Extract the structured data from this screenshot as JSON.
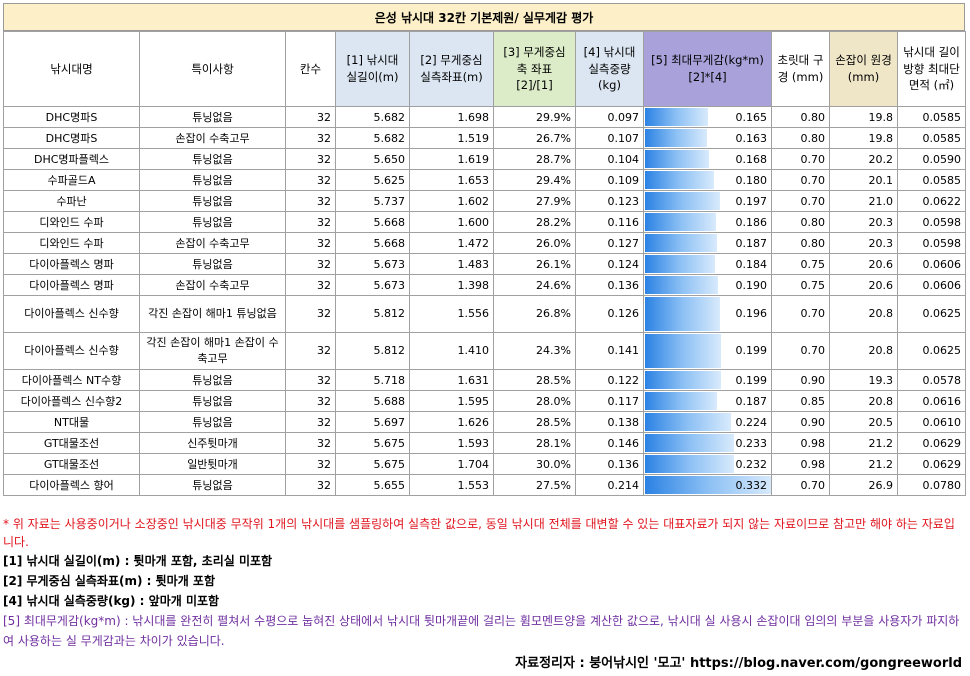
{
  "title": "은성 낚시대 32칸 기본제원/ 실무게감 평가",
  "headers": {
    "name": "낚시대명",
    "note": "특이사항",
    "kan": "칸수",
    "length": "[1] 낚시대 실길이(m)",
    "cg": "[2] 무게중심 실측좌표(m)",
    "cg_ratio": "[3] 무게중심 축 좌표 [2]/[1]",
    "weight": "[4] 낚시대 실측중량 (kg)",
    "moment": "[5] 최대무게감(kg*m) [2]*[4]",
    "tip": "초릿대 구경 (mm)",
    "butt": "손잡이 원경(mm)",
    "area": "낚시대 길이방향 최대단면적 (㎡)"
  },
  "rows": [
    {
      "name": "DHC명파S",
      "note": "튜닝없음",
      "kan": "32",
      "length": "5.682",
      "cg": "1.698",
      "ratio": "29.9%",
      "weight": "0.097",
      "moment": 0.165,
      "moment_text": "0.165",
      "tip": "0.80",
      "butt": "19.8",
      "area": "0.0585"
    },
    {
      "name": "DHC명파S",
      "note": "손잡이 수축고무",
      "kan": "32",
      "length": "5.682",
      "cg": "1.519",
      "ratio": "26.7%",
      "weight": "0.107",
      "moment": 0.163,
      "moment_text": "0.163",
      "tip": "0.80",
      "butt": "19.8",
      "area": "0.0585"
    },
    {
      "name": "DHC명파플렉스",
      "note": "튜닝없음",
      "kan": "32",
      "length": "5.650",
      "cg": "1.619",
      "ratio": "28.7%",
      "weight": "0.104",
      "moment": 0.168,
      "moment_text": "0.168",
      "tip": "0.70",
      "butt": "20.2",
      "area": "0.0590"
    },
    {
      "name": "수파골드A",
      "note": "튜닝없음",
      "kan": "32",
      "length": "5.625",
      "cg": "1.653",
      "ratio": "29.4%",
      "weight": "0.109",
      "moment": 0.18,
      "moment_text": "0.180",
      "tip": "0.70",
      "butt": "20.1",
      "area": "0.0585"
    },
    {
      "name": "수파난",
      "note": "튜닝없음",
      "kan": "32",
      "length": "5.737",
      "cg": "1.602",
      "ratio": "27.9%",
      "weight": "0.123",
      "moment": 0.197,
      "moment_text": "0.197",
      "tip": "0.70",
      "butt": "21.0",
      "area": "0.0622"
    },
    {
      "name": "디와인드 수파",
      "note": "튜닝없음",
      "kan": "32",
      "length": "5.668",
      "cg": "1.600",
      "ratio": "28.2%",
      "weight": "0.116",
      "moment": 0.186,
      "moment_text": "0.186",
      "tip": "0.80",
      "butt": "20.3",
      "area": "0.0598"
    },
    {
      "name": "디와인드 수파",
      "note": "손잡이 수축고무",
      "kan": "32",
      "length": "5.668",
      "cg": "1.472",
      "ratio": "26.0%",
      "weight": "0.127",
      "moment": 0.187,
      "moment_text": "0.187",
      "tip": "0.80",
      "butt": "20.3",
      "area": "0.0598"
    },
    {
      "name": "다이아플렉스 명파",
      "note": "튜닝없음",
      "kan": "32",
      "length": "5.673",
      "cg": "1.483",
      "ratio": "26.1%",
      "weight": "0.124",
      "moment": 0.184,
      "moment_text": "0.184",
      "tip": "0.75",
      "butt": "20.6",
      "area": "0.0606"
    },
    {
      "name": "다이아플렉스 명파",
      "note": "손잡이 수축고무",
      "kan": "32",
      "length": "5.673",
      "cg": "1.398",
      "ratio": "24.6%",
      "weight": "0.136",
      "moment": 0.19,
      "moment_text": "0.190",
      "tip": "0.75",
      "butt": "20.6",
      "area": "0.0606"
    },
    {
      "name": "다이아플렉스 신수향",
      "note": "각진 손잡이 해마1 튜닝없음",
      "kan": "32",
      "length": "5.812",
      "cg": "1.556",
      "ratio": "26.8%",
      "weight": "0.126",
      "moment": 0.196,
      "moment_text": "0.196",
      "tip": "0.70",
      "butt": "20.8",
      "area": "0.0625",
      "tall": true
    },
    {
      "name": "다이아플렉스 신수향",
      "note": "각진 손잡이 해마1 손잡이 수축고무",
      "kan": "32",
      "length": "5.812",
      "cg": "1.410",
      "ratio": "24.3%",
      "weight": "0.141",
      "moment": 0.199,
      "moment_text": "0.199",
      "tip": "0.70",
      "butt": "20.8",
      "area": "0.0625",
      "tall": true
    },
    {
      "name": "다이아플렉스 NT수향",
      "note": "튜닝없음",
      "kan": "32",
      "length": "5.718",
      "cg": "1.631",
      "ratio": "28.5%",
      "weight": "0.122",
      "moment": 0.199,
      "moment_text": "0.199",
      "tip": "0.90",
      "butt": "19.3",
      "area": "0.0578"
    },
    {
      "name": "다이아플렉스 신수향2",
      "note": "튜닝없음",
      "kan": "32",
      "length": "5.688",
      "cg": "1.595",
      "ratio": "28.0%",
      "weight": "0.117",
      "moment": 0.187,
      "moment_text": "0.187",
      "tip": "0.85",
      "butt": "20.8",
      "area": "0.0616"
    },
    {
      "name": "NT대물",
      "note": "튜닝없음",
      "kan": "32",
      "length": "5.697",
      "cg": "1.626",
      "ratio": "28.5%",
      "weight": "0.138",
      "moment": 0.224,
      "moment_text": "0.224",
      "tip": "0.90",
      "butt": "20.5",
      "area": "0.0610"
    },
    {
      "name": "GT대물조선",
      "note": "신주튓마개",
      "kan": "32",
      "length": "5.675",
      "cg": "1.593",
      "ratio": "28.1%",
      "weight": "0.146",
      "moment": 0.233,
      "moment_text": "0.233",
      "tip": "0.98",
      "butt": "21.2",
      "area": "0.0629"
    },
    {
      "name": "GT대물조선",
      "note": "일반튓마개",
      "kan": "32",
      "length": "5.675",
      "cg": "1.704",
      "ratio": "30.0%",
      "weight": "0.136",
      "moment": 0.232,
      "moment_text": "0.232",
      "tip": "0.98",
      "butt": "21.2",
      "area": "0.0629"
    },
    {
      "name": "다이아플렉스 향어",
      "note": "튜닝없음",
      "kan": "32",
      "length": "5.655",
      "cg": "1.553",
      "ratio": "27.5%",
      "weight": "0.214",
      "moment": 0.332,
      "moment_text": "0.332",
      "tip": "0.70",
      "butt": "26.9",
      "area": "0.0780"
    }
  ],
  "moment_bar_max": 0.332,
  "notes": {
    "disclaimer": "* 위 자료는 사용중이거나 소장중인 낚시대중 무작위 1개의 낚시대를 샘플링하여 실측한 값으로, 동일 낚시대 전체를 대변할 수 있는 대표자료가 되지 않는 자료이므로 참고만 해야 하는 자료입니다.",
    "n1": "[1] 낚시대 실길이(m) : 튓마개 포함, 초리실 미포함",
    "n2": "[2] 무게중심 실측좌표(m) : 튓마개 포함",
    "n4": "[4] 낚시대 실측중량(kg) : 앞마개 미포함",
    "n5": "[5] 최대무게감(kg*m) : 낚시대를 완전히 펼쳐서 수평으로 눕혀진 상태에서 낚시대 튓마개끝에 걸리는 휨모멘트양을 계산한 값으로, 낚시대 실 사용시 손잡이대 임의의 부분을 사용자가 파지하여 사용하는 실 무게감과는 차이가 있습니다."
  },
  "credit": "자료정리자 : 붕어낚시인 '모고' https://blog.naver.com/gongreeworld",
  "colors": {
    "title_bg": "#fdf0c8",
    "header_blue": "#dce6f2",
    "header_green": "#dcecc8",
    "header_purple": "#a9a1da",
    "header_tan": "#efe6c8",
    "bar": "#2b82e4",
    "red": "#e0141e",
    "purple": "#7030a0"
  }
}
